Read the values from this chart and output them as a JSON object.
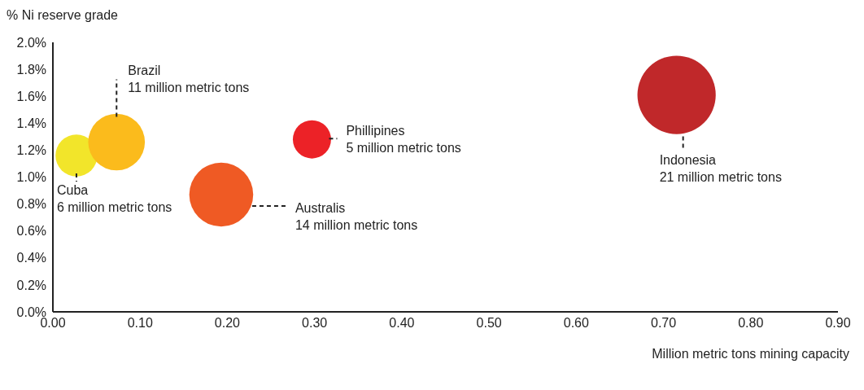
{
  "chart_data": {
    "type": "bubble",
    "xlabel": "Million metric tons mining capacity",
    "ylabel": "% Ni reserve grade",
    "xlim": [
      0,
      0.9
    ],
    "xticks": [
      {
        "value": 0,
        "label": "0.00"
      },
      {
        "value": 0.1,
        "label": "0.10"
      },
      {
        "value": 0.2,
        "label": "0.20"
      },
      {
        "value": 0.3,
        "label": "0.30"
      },
      {
        "value": 0.4,
        "label": "0.40"
      },
      {
        "value": 0.5,
        "label": "0.50"
      },
      {
        "value": 0.6,
        "label": "0.60"
      },
      {
        "value": 0.7,
        "label": "0.70"
      },
      {
        "value": 0.8,
        "label": "0.80"
      },
      {
        "value": 0.9,
        "label": "0.90"
      }
    ],
    "ylim": [
      0,
      2
    ],
    "yticks": [
      {
        "value": 0,
        "label": "0.0%"
      },
      {
        "value": 0.2,
        "label": "0.2%"
      },
      {
        "value": 0.4,
        "label": "0.4%"
      },
      {
        "value": 0.6,
        "label": "0.6%"
      },
      {
        "value": 0.8,
        "label": "0.8%"
      },
      {
        "value": 1,
        "label": "1.0%"
      },
      {
        "value": 1.2,
        "label": "1.2%"
      },
      {
        "value": 1.4,
        "label": "1.4%"
      },
      {
        "value": 1.6,
        "label": "1.6%"
      },
      {
        "value": 1.8,
        "label": "1.8%"
      },
      {
        "value": 2,
        "label": "2.0%"
      }
    ],
    "grid": false,
    "legend": false,
    "series": [
      {
        "name": "Cuba",
        "color": "#f2e52a",
        "x": [
          0.027
        ],
        "values": [
          1.16
        ],
        "sizes": [
          6
        ],
        "value_labels": [
          "6 million metric tons"
        ]
      },
      {
        "name": "Brazil",
        "color": "#fbbb1c",
        "x": [
          0.073
        ],
        "values": [
          1.26
        ],
        "sizes": [
          11
        ],
        "value_labels": [
          "11 million metric tons"
        ]
      },
      {
        "name": "Australis",
        "color": "#ef5a24",
        "x": [
          0.193
        ],
        "values": [
          0.87
        ],
        "sizes": [
          14
        ],
        "value_labels": [
          "14 million metric tons"
        ]
      },
      {
        "name": "Phillipines",
        "color": "#ec2227",
        "x": [
          0.297
        ],
        "values": [
          1.28
        ],
        "sizes": [
          5
        ],
        "value_labels": [
          "5 million metric tons"
        ]
      },
      {
        "name": "Indonesia",
        "color": "#c0282a",
        "x": [
          0.715
        ],
        "values": [
          1.61
        ],
        "sizes": [
          21
        ],
        "value_labels": [
          "21 million metric tons"
        ]
      }
    ]
  }
}
